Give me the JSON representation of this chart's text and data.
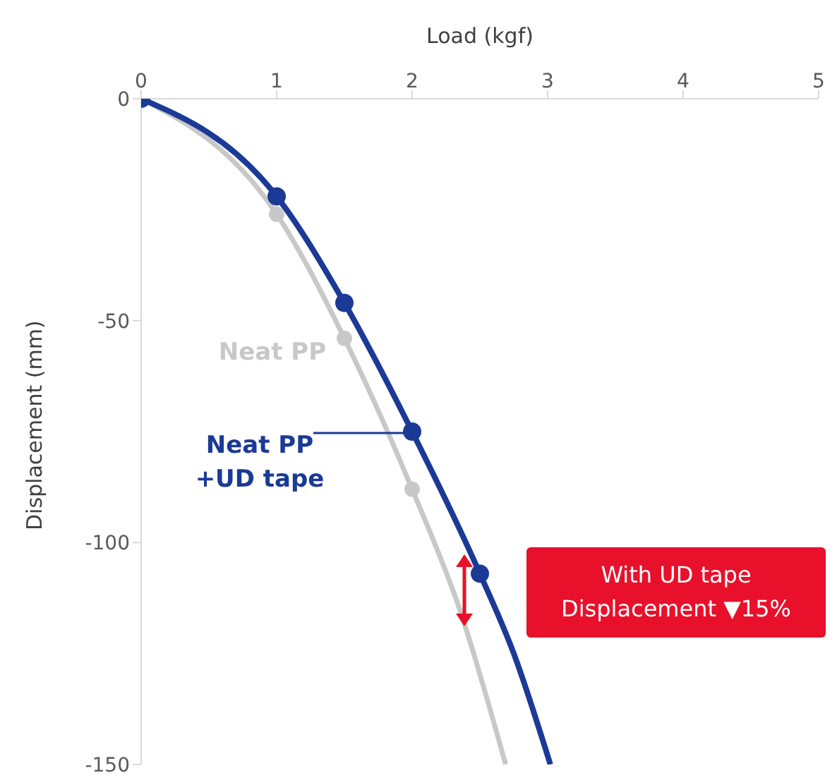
{
  "chart_data": {
    "type": "line",
    "xlabel": "Load (kgf)",
    "ylabel": "Displacement (mm)",
    "xlim": [
      0,
      5
    ],
    "xticks": [
      0,
      1,
      2,
      3,
      4,
      5
    ],
    "ylim": [
      -150,
      0
    ],
    "yticks": [
      0,
      -50,
      -100,
      -150
    ],
    "grid": false,
    "legend": false,
    "series": [
      {
        "name": "Neat PP",
        "color": "#c8c8c8",
        "x": [
          0,
          1,
          1.5,
          2,
          2.35,
          2.69
        ],
        "values": [
          0,
          -26,
          -54,
          -88,
          -115,
          -150
        ]
      },
      {
        "name": "Neat PP +UD tape",
        "color": "#1b3a96",
        "x": [
          0,
          1,
          1.5,
          2,
          2.5,
          2.75,
          3.02
        ],
        "values": [
          0,
          -22,
          -46,
          -75,
          -107,
          -125,
          -150
        ]
      },
      {
        "type": "scatter",
        "color": "#c8c8c8",
        "x": [
          1,
          1.5,
          2
        ],
        "values": [
          -26,
          -54,
          -88
        ]
      },
      {
        "type": "scatter",
        "color": "#1b3a96",
        "x": [
          0,
          1,
          1.5,
          2,
          2.5
        ],
        "values": [
          0,
          -22,
          -46,
          -75,
          -107
        ]
      }
    ],
    "annotations": [
      "With UD tape",
      "Displacement ▼15%"
    ]
  }
}
